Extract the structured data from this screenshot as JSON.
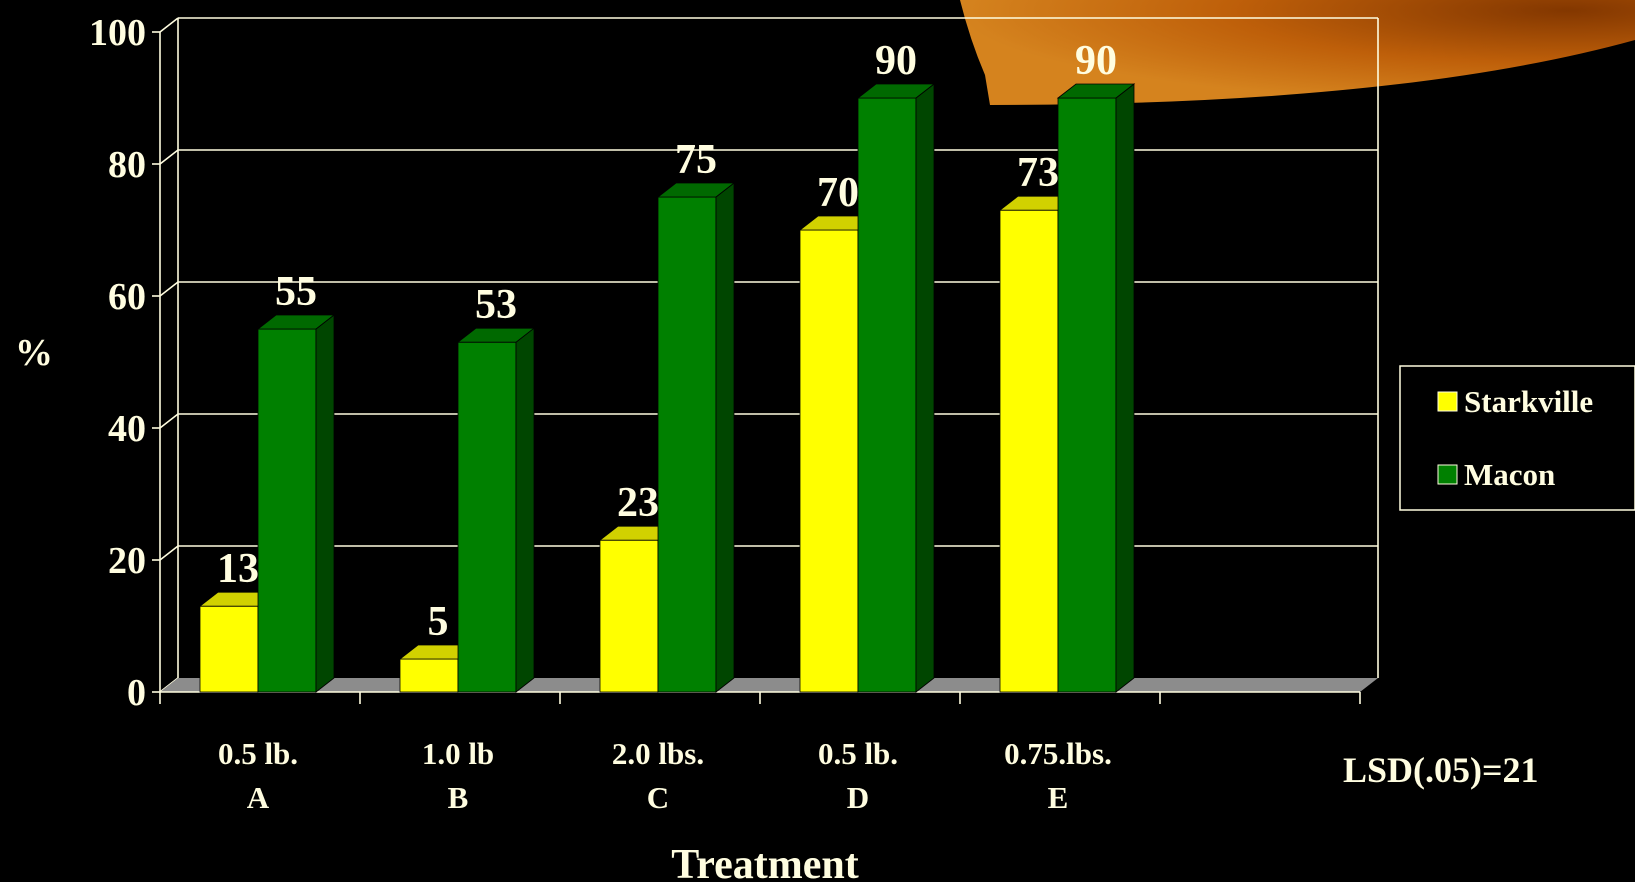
{
  "chart_data": {
    "type": "bar",
    "categories": [
      {
        "line1": "0.5 lb.",
        "line2": "A"
      },
      {
        "line1": "1.0 lb",
        "line2": "B"
      },
      {
        "line1": "2.0 lbs.",
        "line2": "C"
      },
      {
        "line1": "0.5 lb.",
        "line2": "D"
      },
      {
        "line1": "0.75.lbs.",
        "line2": "E"
      }
    ],
    "series": [
      {
        "name": "Starkville",
        "color": "#ffff00",
        "values": [
          13,
          5,
          23,
          70,
          73
        ]
      },
      {
        "name": "Macon",
        "color": "#008000",
        "values": [
          55,
          53,
          75,
          90,
          90
        ]
      }
    ],
    "data_labels": {
      "Starkville": [
        "13",
        "5",
        "23",
        "70",
        "73"
      ],
      "Macon": [
        "55",
        "53",
        "75",
        "90",
        "90"
      ]
    },
    "xlabel": "Treatment",
    "ylabel": "%",
    "ylim": [
      0,
      100
    ],
    "yticks": [
      "0",
      "20",
      "40",
      "60",
      "80",
      "100"
    ],
    "grid": true,
    "legend_position": "right",
    "annotation": "LSD(.05)=21",
    "colors": {
      "background": "#000000",
      "text": "#fffde0",
      "gridline": "#fffde0",
      "floor": "#8c8c8c",
      "accent": "#c8640a"
    }
  }
}
